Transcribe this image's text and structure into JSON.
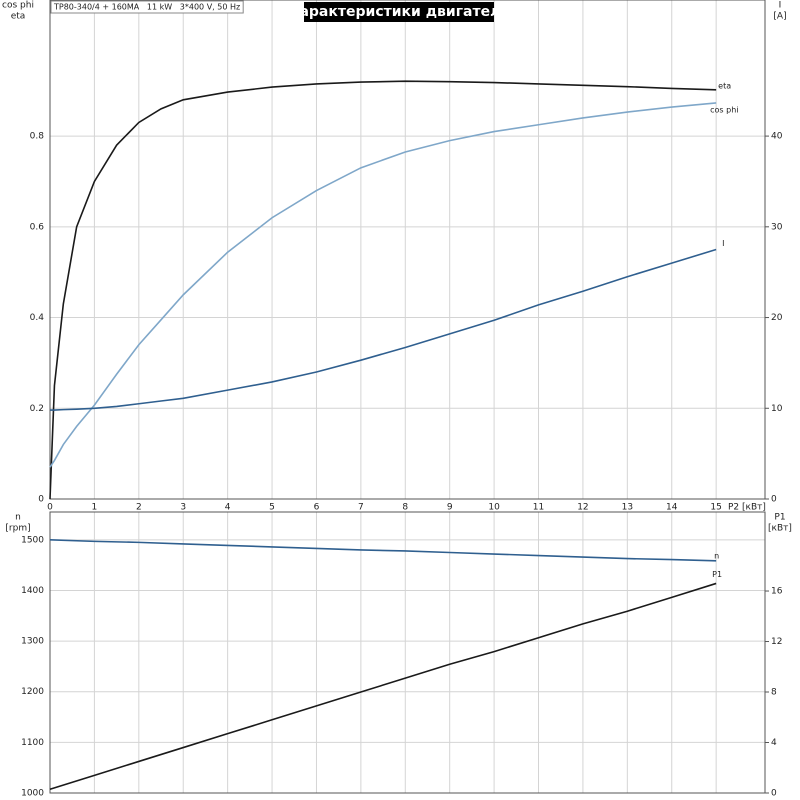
{
  "chart_data": [
    {
      "type": "line",
      "title": "Характеристики двигателя",
      "subtitle": "TP80-340/4 + 160MA   11 kW   3*400 V, 50 Hz",
      "ylabel_lines": [
        "cos phi",
        "eta"
      ],
      "y2label_lines": [
        "I",
        "[A]"
      ],
      "xlabel": "P2 [кВт]",
      "x": [
        0,
        0.1,
        0.3,
        0.6,
        1,
        1.5,
        2,
        2.5,
        3,
        4,
        5,
        6,
        7,
        8,
        9,
        10,
        11,
        12,
        13,
        14,
        15
      ],
      "series": [
        {
          "name": "eta",
          "color": "#1a1a1a",
          "values": [
            0,
            0.25,
            0.43,
            0.6,
            0.7,
            0.78,
            0.83,
            0.86,
            0.88,
            0.897,
            0.908,
            0.915,
            0.919,
            0.921,
            0.92,
            0.918,
            0.915,
            0.912,
            0.909,
            0.905,
            0.902
          ]
        },
        {
          "name": "cos phi",
          "color": "#7fa7c9",
          "values": [
            0.07,
            0.085,
            0.12,
            0.16,
            0.207,
            0.275,
            0.34,
            0.395,
            0.45,
            0.544,
            0.62,
            0.68,
            0.73,
            0.765,
            0.79,
            0.81,
            0.825,
            0.84,
            0.853,
            0.864,
            0.873
          ]
        },
        {
          "name": "I",
          "color": "#2f5f8f",
          "axis": "y2",
          "values": [
            9.8,
            9.8,
            9.85,
            9.9,
            10.0,
            10.2,
            10.5,
            10.8,
            11.1,
            12.0,
            12.9,
            14.0,
            15.3,
            16.7,
            18.2,
            19.7,
            21.4,
            22.9,
            24.5,
            26.0,
            27.5
          ]
        }
      ],
      "xlim": [
        0,
        16.1
      ],
      "xticks": [
        0,
        1,
        2,
        3,
        4,
        5,
        6,
        7,
        8,
        9,
        10,
        11,
        12,
        13,
        14,
        15
      ],
      "show_xtick_labels": true,
      "ylim": [
        0,
        1.1
      ],
      "yticks": [
        0,
        0.2,
        0.4,
        0.6,
        0.8
      ],
      "y2lim": [
        0,
        55
      ],
      "y2ticks": [
        0,
        10,
        20,
        30,
        40
      ],
      "grid": true
    },
    {
      "type": "line",
      "ylabel_lines": [
        "n",
        "[rpm]"
      ],
      "y2label_lines": [
        "P1",
        "[кВт]"
      ],
      "x": [
        0,
        1,
        2,
        3,
        4,
        5,
        6,
        7,
        8,
        9,
        10,
        11,
        12,
        13,
        14,
        15
      ],
      "series": [
        {
          "name": "n",
          "color": "#2f5f8f",
          "values": [
            1500,
            1497,
            1495,
            1492,
            1489,
            1486,
            1483,
            1480,
            1478,
            1475,
            1472,
            1469,
            1466,
            1463,
            1461,
            1458.5
          ]
        },
        {
          "name": "P1",
          "color": "#1a1a1a",
          "axis": "y2",
          "values": [
            0.3,
            1.4,
            2.5,
            3.6,
            4.7,
            5.8,
            6.9,
            8.0,
            9.1,
            10.2,
            11.2,
            12.3,
            13.4,
            14.4,
            15.5,
            16.6
          ]
        }
      ],
      "xlim": [
        0,
        16.1
      ],
      "xticks": [
        0,
        1,
        2,
        3,
        4,
        5,
        6,
        7,
        8,
        9,
        10,
        11,
        12,
        13,
        14,
        15
      ],
      "show_xtick_labels": false,
      "ylim": [
        1000,
        1555
      ],
      "yticks": [
        1000,
        1100,
        1200,
        1300,
        1400,
        1500
      ],
      "y2lim": [
        0,
        22.26
      ],
      "y2ticks": [
        0,
        4,
        8,
        12,
        16
      ],
      "grid": true
    }
  ]
}
